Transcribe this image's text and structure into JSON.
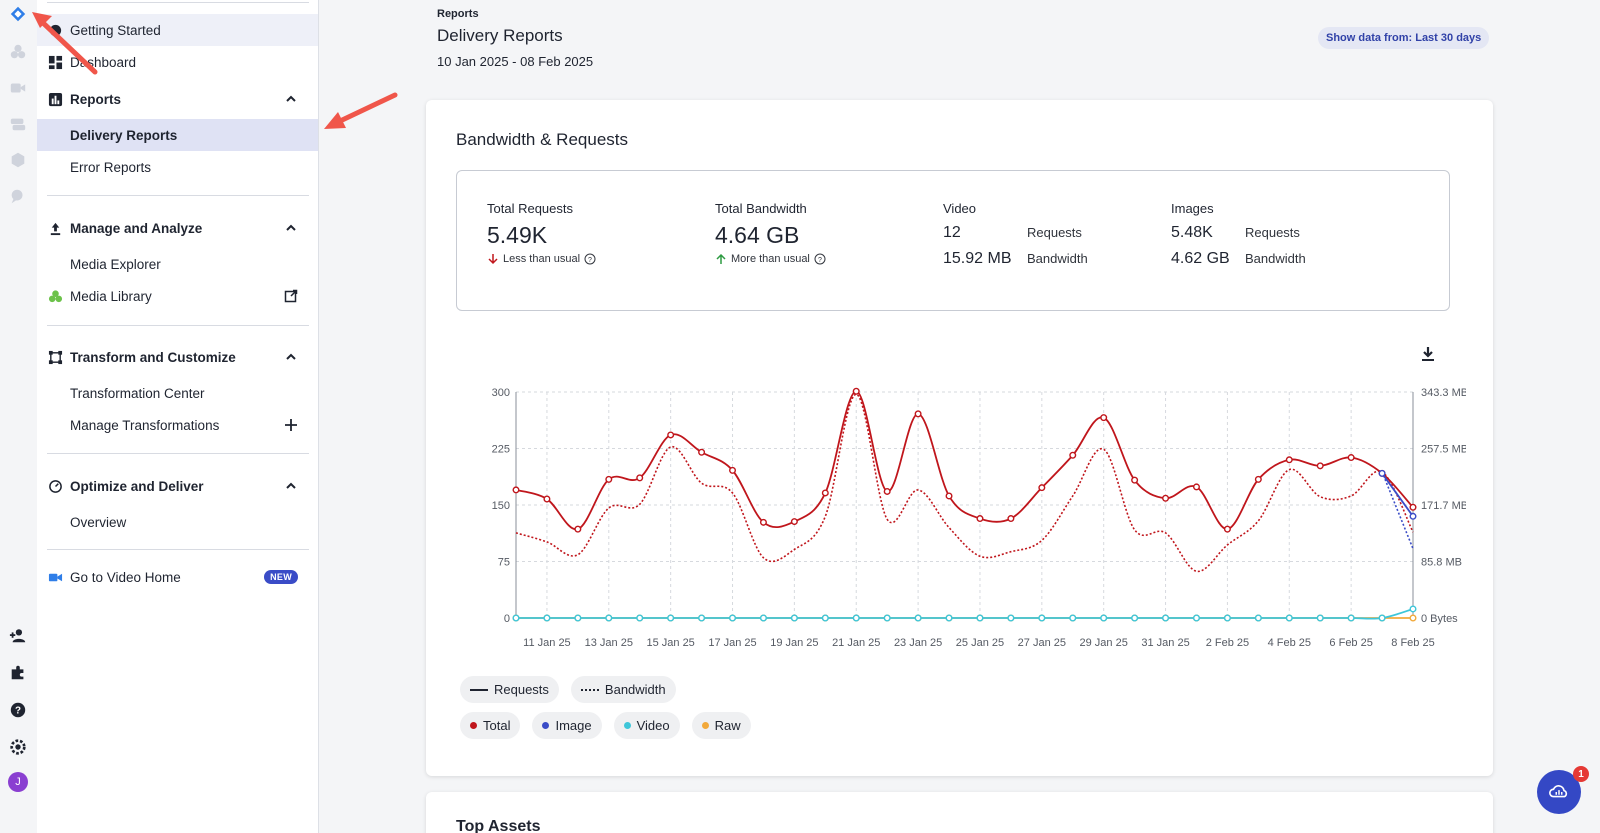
{
  "sidebar": {
    "getting_started": "Getting Started",
    "dashboard": "Dashboard",
    "reports": "Reports",
    "delivery_reports": "Delivery Reports",
    "error_reports": "Error Reports",
    "manage_analyze": "Manage and Analyze",
    "media_explorer": "Media Explorer",
    "media_library": "Media Library",
    "transform_customize": "Transform and Customize",
    "transformation_center": "Transformation Center",
    "manage_transformations": "Manage Transformations",
    "optimize_deliver": "Optimize and Deliver",
    "overview": "Overview",
    "video_home": "Go to Video Home",
    "new_badge": "NEW"
  },
  "rail": {
    "avatar_initial": "J"
  },
  "header": {
    "breadcrumb": "Reports",
    "title": "Delivery Reports",
    "date_range": "10 Jan 2025 - 08 Feb 2025",
    "range_button": "Show data from: Last 30 days"
  },
  "card": {
    "title": "Bandwidth & Requests",
    "total_requests_label": "Total Requests",
    "total_requests_value": "5.49K",
    "total_requests_delta": "Less than usual",
    "total_bandwidth_label": "Total Bandwidth",
    "total_bandwidth_value": "4.64 GB",
    "total_bandwidth_delta": "More than usual",
    "video_label": "Video",
    "video_requests": "12",
    "video_bandwidth": "15.92 MB",
    "images_label": "Images",
    "images_requests": "5.48K",
    "images_bandwidth": "4.62 GB",
    "requests_word": "Requests",
    "bandwidth_word": "Bandwidth"
  },
  "legend": {
    "requests": "Requests",
    "bandwidth": "Bandwidth",
    "total": "Total",
    "image": "Image",
    "video": "Video",
    "raw": "Raw"
  },
  "colors": {
    "total": "#c0161c",
    "image": "#3a4cc7",
    "video": "#3ec6d9",
    "raw": "#f2a93b",
    "accent": "#3448c5"
  },
  "card2": {
    "title": "Top Assets"
  },
  "fab": {
    "badge": "1"
  },
  "chart_data": {
    "type": "line",
    "x": [
      "10 Jan 25",
      "11 Jan 25",
      "12 Jan 25",
      "13 Jan 25",
      "14 Jan 25",
      "15 Jan 25",
      "16 Jan 25",
      "17 Jan 25",
      "18 Jan 25",
      "19 Jan 25",
      "20 Jan 25",
      "21 Jan 25",
      "22 Jan 25",
      "23 Jan 25",
      "24 Jan 25",
      "25 Jan 25",
      "26 Jan 25",
      "27 Jan 25",
      "28 Jan 25",
      "29 Jan 25",
      "30 Jan 25",
      "31 Jan 25",
      "1 Feb 25",
      "2 Feb 25",
      "3 Feb 25",
      "4 Feb 25",
      "5 Feb 25",
      "6 Feb 25",
      "7 Feb 25",
      "8 Feb 25"
    ],
    "x_tick_labels": [
      "11 Jan 25",
      "13 Jan 25",
      "15 Jan 25",
      "17 Jan 25",
      "19 Jan 25",
      "21 Jan 25",
      "23 Jan 25",
      "25 Jan 25",
      "27 Jan 25",
      "29 Jan 25",
      "31 Jan 25",
      "2 Feb 25",
      "4 Feb 25",
      "6 Feb 25",
      "8 Feb 25"
    ],
    "y_left_ticks": [
      "0",
      "75",
      "150",
      "225",
      "300"
    ],
    "y_right_ticks": [
      "0 Bytes",
      "85.8 MB",
      "171.7 MB",
      "257.5 MB",
      "343.3 MB"
    ],
    "ylim_left": [
      0,
      300
    ],
    "series": [
      {
        "name": "Total",
        "metric": "Requests",
        "values": [
          170,
          158,
          118,
          184,
          186,
          243,
          220,
          196,
          127,
          128,
          166,
          301,
          168,
          271,
          162,
          132,
          132,
          173,
          216,
          266,
          183,
          159,
          174,
          118,
          184,
          210,
          202,
          213,
          192,
          147
        ]
      },
      {
        "name": "Total",
        "metric": "Bandwidth",
        "values": [
          113,
          101,
          84,
          146,
          151,
          227,
          179,
          166,
          80,
          91,
          135,
          297,
          131,
          170,
          120,
          82,
          88,
          103,
          162,
          224,
          117,
          113,
          62,
          97,
          129,
          197,
          161,
          162,
          194,
          114
        ]
      },
      {
        "name": "Image",
        "metric": "Requests",
        "values": [
          null,
          null,
          null,
          null,
          null,
          null,
          null,
          null,
          null,
          null,
          null,
          null,
          null,
          null,
          null,
          null,
          null,
          null,
          null,
          null,
          null,
          null,
          null,
          null,
          null,
          null,
          null,
          null,
          192,
          135
        ]
      },
      {
        "name": "Image",
        "metric": "Bandwidth",
        "values": [
          null,
          null,
          null,
          null,
          null,
          null,
          null,
          null,
          null,
          null,
          null,
          null,
          null,
          null,
          null,
          null,
          null,
          null,
          null,
          null,
          null,
          null,
          null,
          null,
          null,
          null,
          null,
          null,
          194,
          92
        ]
      },
      {
        "name": "Video",
        "metric": "Requests",
        "values": [
          0,
          0,
          0,
          0,
          0,
          0,
          0,
          0,
          0,
          0,
          0,
          0,
          0,
          0,
          0,
          0,
          0,
          0,
          0,
          0,
          0,
          0,
          0,
          0,
          0,
          0,
          0,
          0,
          0,
          12
        ]
      },
      {
        "name": "Raw",
        "metric": "Requests",
        "values": [
          0,
          0,
          0,
          0,
          0,
          0,
          0,
          0,
          0,
          0,
          0,
          0,
          0,
          0,
          0,
          0,
          0,
          0,
          0,
          0,
          0,
          0,
          0,
          0,
          0,
          0,
          0,
          0,
          0,
          0
        ]
      }
    ],
    "grid": true,
    "legend_placement": "bottom-left"
  }
}
